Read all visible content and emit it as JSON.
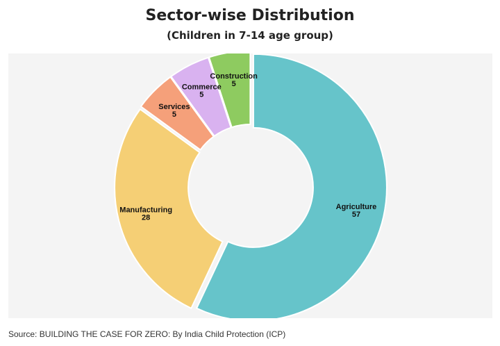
{
  "header": {
    "title": "Sector-wise Distribution",
    "subtitle": "(Children in 7-14 age group)"
  },
  "footer": {
    "source": "Source: BUILDING THE CASE FOR ZERO: By India Child Protection (ICP)"
  },
  "chart_data": {
    "type": "pie",
    "variant": "donut",
    "title": "Sector-wise Distribution",
    "subtitle": "(Children in 7-14 age group)",
    "start_angle_deg": 0,
    "direction": "clockwise",
    "slices": [
      {
        "label": "Agriculture",
        "value": 57,
        "color": "#66c4ca"
      },
      {
        "label": "Manufacturing",
        "value": 28,
        "color": "#f5cf75"
      },
      {
        "label": "Services",
        "value": 5,
        "color": "#f5a07a"
      },
      {
        "label": "Commerce",
        "value": 5,
        "color": "#d9b2f0"
      },
      {
        "label": "Construction",
        "value": 5,
        "color": "#8ecb60"
      }
    ]
  },
  "colors": {
    "background": "#ffffff",
    "panel": "#f4f4f4",
    "slice_border": "#ffffff"
  }
}
